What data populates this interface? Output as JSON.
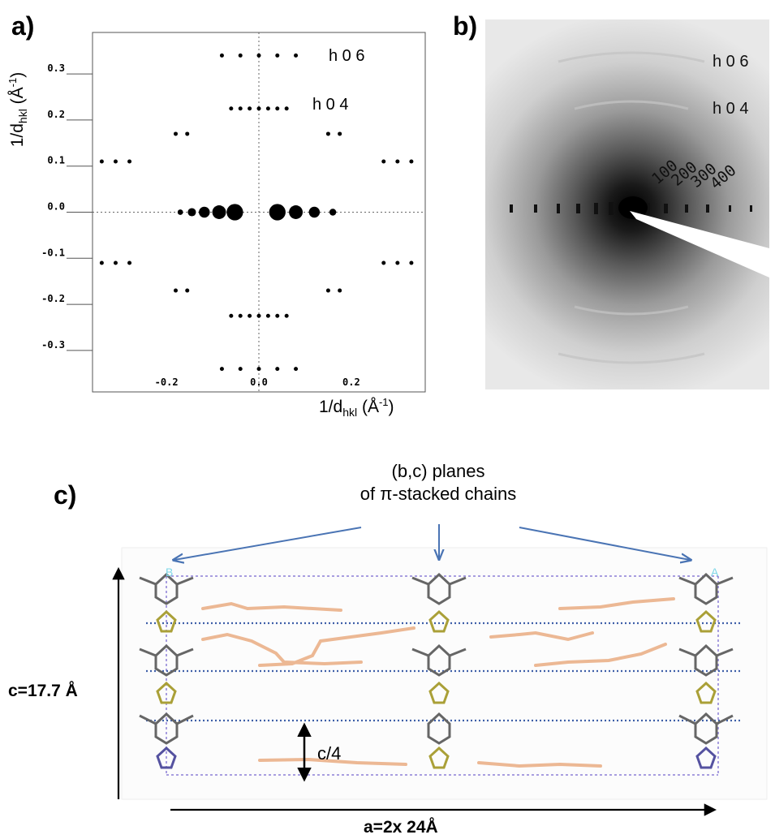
{
  "panels": {
    "a": {
      "letter": "a)",
      "y_axis_label": "1/d",
      "y_axis_sub": "hkl",
      "y_axis_unit": "(Å",
      "y_axis_unit_exp": "-1",
      "y_axis_close": ")",
      "x_axis_label": "1/d",
      "x_axis_sub": "hkl",
      "x_axis_unit": "(Å",
      "x_axis_unit_exp": "-1",
      "x_axis_close": ")",
      "y_ticks": [
        "0.3",
        "0.2",
        "0.1",
        "0.0",
        "-0.1",
        "-0.2",
        "-0.3"
      ],
      "x_ticks": [
        "-0.2",
        "0.0",
        "0.2"
      ],
      "annotations": [
        "h 0 6",
        "h 0 4"
      ]
    },
    "b": {
      "letter": "b)",
      "layer_labels": [
        "h 0 6",
        "h 0 4"
      ],
      "reflection_labels": [
        "100",
        "200",
        "300",
        "400"
      ]
    },
    "c": {
      "letter": "c)",
      "caption_line1": "(b,c) planes",
      "caption_line2": "of π-stacked chains",
      "c_axis_label": "c=17.7 Å",
      "quarter_label": "c/4",
      "a_axis_label": "a=2x 24Å",
      "corner_labels": [
        "B",
        "A"
      ]
    }
  },
  "chart_data": {
    "type": "scatter",
    "title": "",
    "xlabel": "1/dhkl (Å-1)",
    "ylabel": "1/dhkl (Å-1)",
    "xlim": [
      -0.36,
      0.36
    ],
    "ylim": [
      -0.39,
      0.39
    ],
    "x_ticks": [
      -0.2,
      0.0,
      0.2
    ],
    "y_ticks": [
      -0.3,
      -0.2,
      -0.1,
      0.0,
      0.1,
      0.2,
      0.3
    ],
    "reference_lines": {
      "x": 0.0,
      "y": 0.0
    },
    "points": [
      {
        "x": -0.17,
        "y": 0.0,
        "size": 2
      },
      {
        "x": -0.145,
        "y": 0.0,
        "size": 4
      },
      {
        "x": -0.118,
        "y": 0.0,
        "size": 6
      },
      {
        "x": -0.086,
        "y": 0.0,
        "size": 8
      },
      {
        "x": -0.052,
        "y": 0.0,
        "size": 10
      },
      {
        "x": 0.04,
        "y": 0.0,
        "size": 10
      },
      {
        "x": 0.08,
        "y": 0.0,
        "size": 8
      },
      {
        "x": 0.12,
        "y": 0.0,
        "size": 6
      },
      {
        "x": 0.16,
        "y": 0.0,
        "size": 3
      },
      {
        "x": -0.34,
        "y": 0.11,
        "size": 1
      },
      {
        "x": -0.31,
        "y": 0.11,
        "size": 1
      },
      {
        "x": -0.28,
        "y": 0.11,
        "size": 1
      },
      {
        "x": 0.27,
        "y": 0.11,
        "size": 1
      },
      {
        "x": 0.3,
        "y": 0.11,
        "size": 1
      },
      {
        "x": 0.33,
        "y": 0.11,
        "size": 1
      },
      {
        "x": -0.34,
        "y": -0.11,
        "size": 1
      },
      {
        "x": -0.31,
        "y": -0.11,
        "size": 1
      },
      {
        "x": -0.28,
        "y": -0.11,
        "size": 1
      },
      {
        "x": 0.27,
        "y": -0.11,
        "size": 1
      },
      {
        "x": 0.3,
        "y": -0.11,
        "size": 1
      },
      {
        "x": 0.33,
        "y": -0.11,
        "size": 1
      },
      {
        "x": -0.18,
        "y": 0.17,
        "size": 1
      },
      {
        "x": -0.155,
        "y": 0.17,
        "size": 1
      },
      {
        "x": 0.15,
        "y": 0.17,
        "size": 1
      },
      {
        "x": 0.175,
        "y": 0.17,
        "size": 1
      },
      {
        "x": -0.18,
        "y": -0.17,
        "size": 1
      },
      {
        "x": -0.155,
        "y": -0.17,
        "size": 1
      },
      {
        "x": 0.15,
        "y": -0.17,
        "size": 1
      },
      {
        "x": 0.175,
        "y": -0.17,
        "size": 1
      },
      {
        "x": -0.06,
        "y": 0.225,
        "size": 1
      },
      {
        "x": -0.04,
        "y": 0.225,
        "size": 1
      },
      {
        "x": -0.02,
        "y": 0.225,
        "size": 1
      },
      {
        "x": 0.0,
        "y": 0.225,
        "size": 1
      },
      {
        "x": 0.02,
        "y": 0.225,
        "size": 1
      },
      {
        "x": 0.04,
        "y": 0.225,
        "size": 1
      },
      {
        "x": 0.06,
        "y": 0.225,
        "size": 1
      },
      {
        "x": -0.06,
        "y": -0.225,
        "size": 1
      },
      {
        "x": -0.04,
        "y": -0.225,
        "size": 1
      },
      {
        "x": -0.02,
        "y": -0.225,
        "size": 1
      },
      {
        "x": 0.0,
        "y": -0.225,
        "size": 1
      },
      {
        "x": 0.02,
        "y": -0.225,
        "size": 1
      },
      {
        "x": 0.04,
        "y": -0.225,
        "size": 1
      },
      {
        "x": 0.06,
        "y": -0.225,
        "size": 1
      },
      {
        "x": -0.08,
        "y": 0.34,
        "size": 1
      },
      {
        "x": -0.04,
        "y": 0.34,
        "size": 1
      },
      {
        "x": 0.0,
        "y": 0.34,
        "size": 1
      },
      {
        "x": 0.04,
        "y": 0.34,
        "size": 1
      },
      {
        "x": 0.08,
        "y": 0.34,
        "size": 1
      },
      {
        "x": -0.08,
        "y": -0.34,
        "size": 1
      },
      {
        "x": -0.04,
        "y": -0.34,
        "size": 1
      },
      {
        "x": 0.0,
        "y": -0.34,
        "size": 1
      },
      {
        "x": 0.04,
        "y": -0.34,
        "size": 1
      },
      {
        "x": 0.08,
        "y": -0.34,
        "size": 1
      }
    ]
  }
}
